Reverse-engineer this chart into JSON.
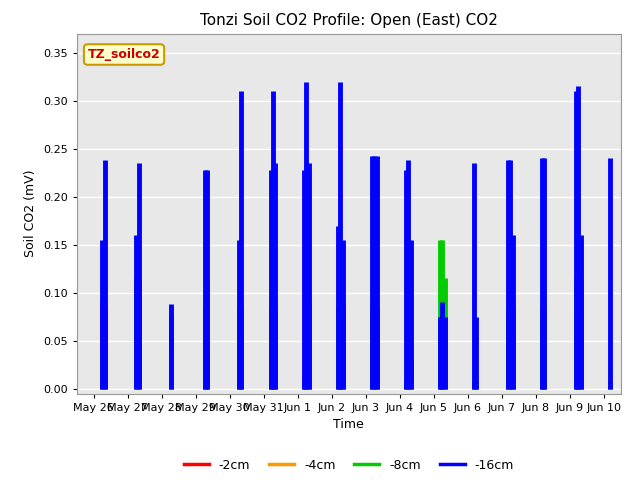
{
  "title": "Tonzi Soil CO2 Profile: Open (East) CO2",
  "ylabel": "Soil CO2 (mV)",
  "xlabel": "Time",
  "legend_label": "TZ_soilco2",
  "series_labels": [
    "-2cm",
    "-4cm",
    "-8cm",
    "-16cm"
  ],
  "series_colors": [
    "#ff0000",
    "#ff9900",
    "#00cc00",
    "#0000ff"
  ],
  "xlim": [
    -0.5,
    15.5
  ],
  "ylim": [
    -0.005,
    0.37
  ],
  "yticks": [
    0.0,
    0.05,
    0.1,
    0.15,
    0.2,
    0.25,
    0.3,
    0.35
  ],
  "xtick_labels": [
    "May 26",
    "May 27",
    "May 28",
    "May 29",
    "May 30",
    "May 31",
    "Jun 1",
    "Jun 2",
    "Jun 3",
    "Jun 4",
    "Jun 5",
    "Jun 6",
    "Jun 7",
    "Jun 8",
    "Jun 9",
    "Jun 10"
  ],
  "xtick_positions": [
    0,
    1,
    2,
    3,
    4,
    5,
    6,
    7,
    8,
    9,
    10,
    11,
    12,
    13,
    14,
    15
  ],
  "plot_bg": "#e8e8e8",
  "fig_bg": "#ffffff",
  "grid_color": "#ffffff",
  "title_fontsize": 11,
  "axis_fontsize": 9,
  "tick_fontsize": 8,
  "legend_box_facecolor": "#ffffcc",
  "legend_box_edgecolor": "#cc9900",
  "legend_text_color": "#cc0000",
  "spike_events": [
    {
      "t": 0.25,
      "lw": 3.5,
      "vals": [
        0.09,
        0.003,
        0.04,
        0.155
      ]
    },
    {
      "t": 0.32,
      "lw": 3.5,
      "vals": [
        0.085,
        0.003,
        0.04,
        0.238
      ]
    },
    {
      "t": 1.25,
      "lw": 3.5,
      "vals": [
        0.04,
        0.003,
        0.115,
        0.16
      ]
    },
    {
      "t": 1.32,
      "lw": 3.5,
      "vals": [
        0.04,
        0.003,
        0.115,
        0.235
      ]
    },
    {
      "t": 2.27,
      "lw": 3.5,
      "vals": [
        0.076,
        0.003,
        0.04,
        0.088
      ]
    },
    {
      "t": 3.27,
      "lw": 3.5,
      "vals": [
        0.04,
        0.003,
        0.085,
        0.228
      ]
    },
    {
      "t": 3.34,
      "lw": 3.5,
      "vals": [
        0.04,
        0.003,
        0.115,
        0.228
      ]
    },
    {
      "t": 4.27,
      "lw": 3.5,
      "vals": [
        0.08,
        0.01,
        0.085,
        0.155
      ]
    },
    {
      "t": 4.34,
      "lw": 3.5,
      "vals": [
        0.08,
        0.01,
        0.085,
        0.31
      ]
    },
    {
      "t": 5.22,
      "lw": 3.5,
      "vals": [
        0.08,
        0.01,
        0.085,
        0.228
      ]
    },
    {
      "t": 5.28,
      "lw": 3.5,
      "vals": [
        0.08,
        0.087,
        0.085,
        0.31
      ]
    },
    {
      "t": 5.34,
      "lw": 3.5,
      "vals": [
        0.008,
        0.087,
        0.085,
        0.235
      ]
    },
    {
      "t": 6.18,
      "lw": 3.5,
      "vals": [
        0.008,
        0.005,
        0.005,
        0.228
      ]
    },
    {
      "t": 6.25,
      "lw": 3.5,
      "vals": [
        0.09,
        0.087,
        0.087,
        0.32
      ]
    },
    {
      "t": 6.32,
      "lw": 3.5,
      "vals": [
        0.09,
        0.087,
        0.087,
        0.235
      ]
    },
    {
      "t": 7.18,
      "lw": 3.5,
      "vals": [
        0.085,
        0.087,
        0.085,
        0.17
      ]
    },
    {
      "t": 7.25,
      "lw": 3.5,
      "vals": [
        0.085,
        0.087,
        0.085,
        0.32
      ]
    },
    {
      "t": 7.32,
      "lw": 3.5,
      "vals": [
        0.085,
        0.087,
        0.085,
        0.155
      ]
    },
    {
      "t": 8.18,
      "lw": 3.5,
      "vals": [
        0.085,
        0.087,
        0.085,
        0.243
      ]
    },
    {
      "t": 8.25,
      "lw": 3.5,
      "vals": [
        0.085,
        0.087,
        0.085,
        0.243
      ]
    },
    {
      "t": 8.32,
      "lw": 3.5,
      "vals": [
        0.085,
        0.087,
        0.085,
        0.243
      ]
    },
    {
      "t": 9.18,
      "lw": 3.5,
      "vals": [
        0.005,
        0.005,
        0.008,
        0.228
      ]
    },
    {
      "t": 9.25,
      "lw": 3.5,
      "vals": [
        0.03,
        0.005,
        0.008,
        0.238
      ]
    },
    {
      "t": 9.32,
      "lw": 3.5,
      "vals": [
        0.03,
        0.005,
        0.008,
        0.155
      ]
    },
    {
      "t": 10.18,
      "lw": 3.5,
      "vals": [
        0.008,
        0.005,
        0.155,
        0.075
      ]
    },
    {
      "t": 10.25,
      "lw": 3.5,
      "vals": [
        0.008,
        0.005,
        0.155,
        0.09
      ]
    },
    {
      "t": 10.32,
      "lw": 3.5,
      "vals": [
        0.008,
        0.005,
        0.115,
        0.075
      ]
    },
    {
      "t": 11.18,
      "lw": 3.5,
      "vals": [
        0.008,
        0.005,
        0.008,
        0.235
      ]
    },
    {
      "t": 11.25,
      "lw": 3.5,
      "vals": [
        0.008,
        0.005,
        0.008,
        0.075
      ]
    },
    {
      "t": 12.18,
      "lw": 3.5,
      "vals": [
        0.085,
        0.005,
        0.085,
        0.238
      ]
    },
    {
      "t": 12.25,
      "lw": 3.5,
      "vals": [
        0.085,
        0.087,
        0.085,
        0.238
      ]
    },
    {
      "t": 12.32,
      "lw": 3.5,
      "vals": [
        0.085,
        0.087,
        0.085,
        0.16
      ]
    },
    {
      "t": 13.18,
      "lw": 3.5,
      "vals": [
        0.085,
        0.087,
        0.085,
        0.24
      ]
    },
    {
      "t": 13.25,
      "lw": 3.5,
      "vals": [
        0.085,
        0.087,
        0.085,
        0.24
      ]
    },
    {
      "t": 14.18,
      "lw": 3.5,
      "vals": [
        0.085,
        0.087,
        0.115,
        0.31
      ]
    },
    {
      "t": 14.25,
      "lw": 3.5,
      "vals": [
        0.085,
        0.087,
        0.115,
        0.315
      ]
    },
    {
      "t": 14.32,
      "lw": 3.5,
      "vals": [
        0.085,
        0.087,
        0.115,
        0.16
      ]
    },
    {
      "t": 15.18,
      "lw": 3.5,
      "vals": [
        0.008,
        0.005,
        0.008,
        0.24
      ]
    }
  ]
}
